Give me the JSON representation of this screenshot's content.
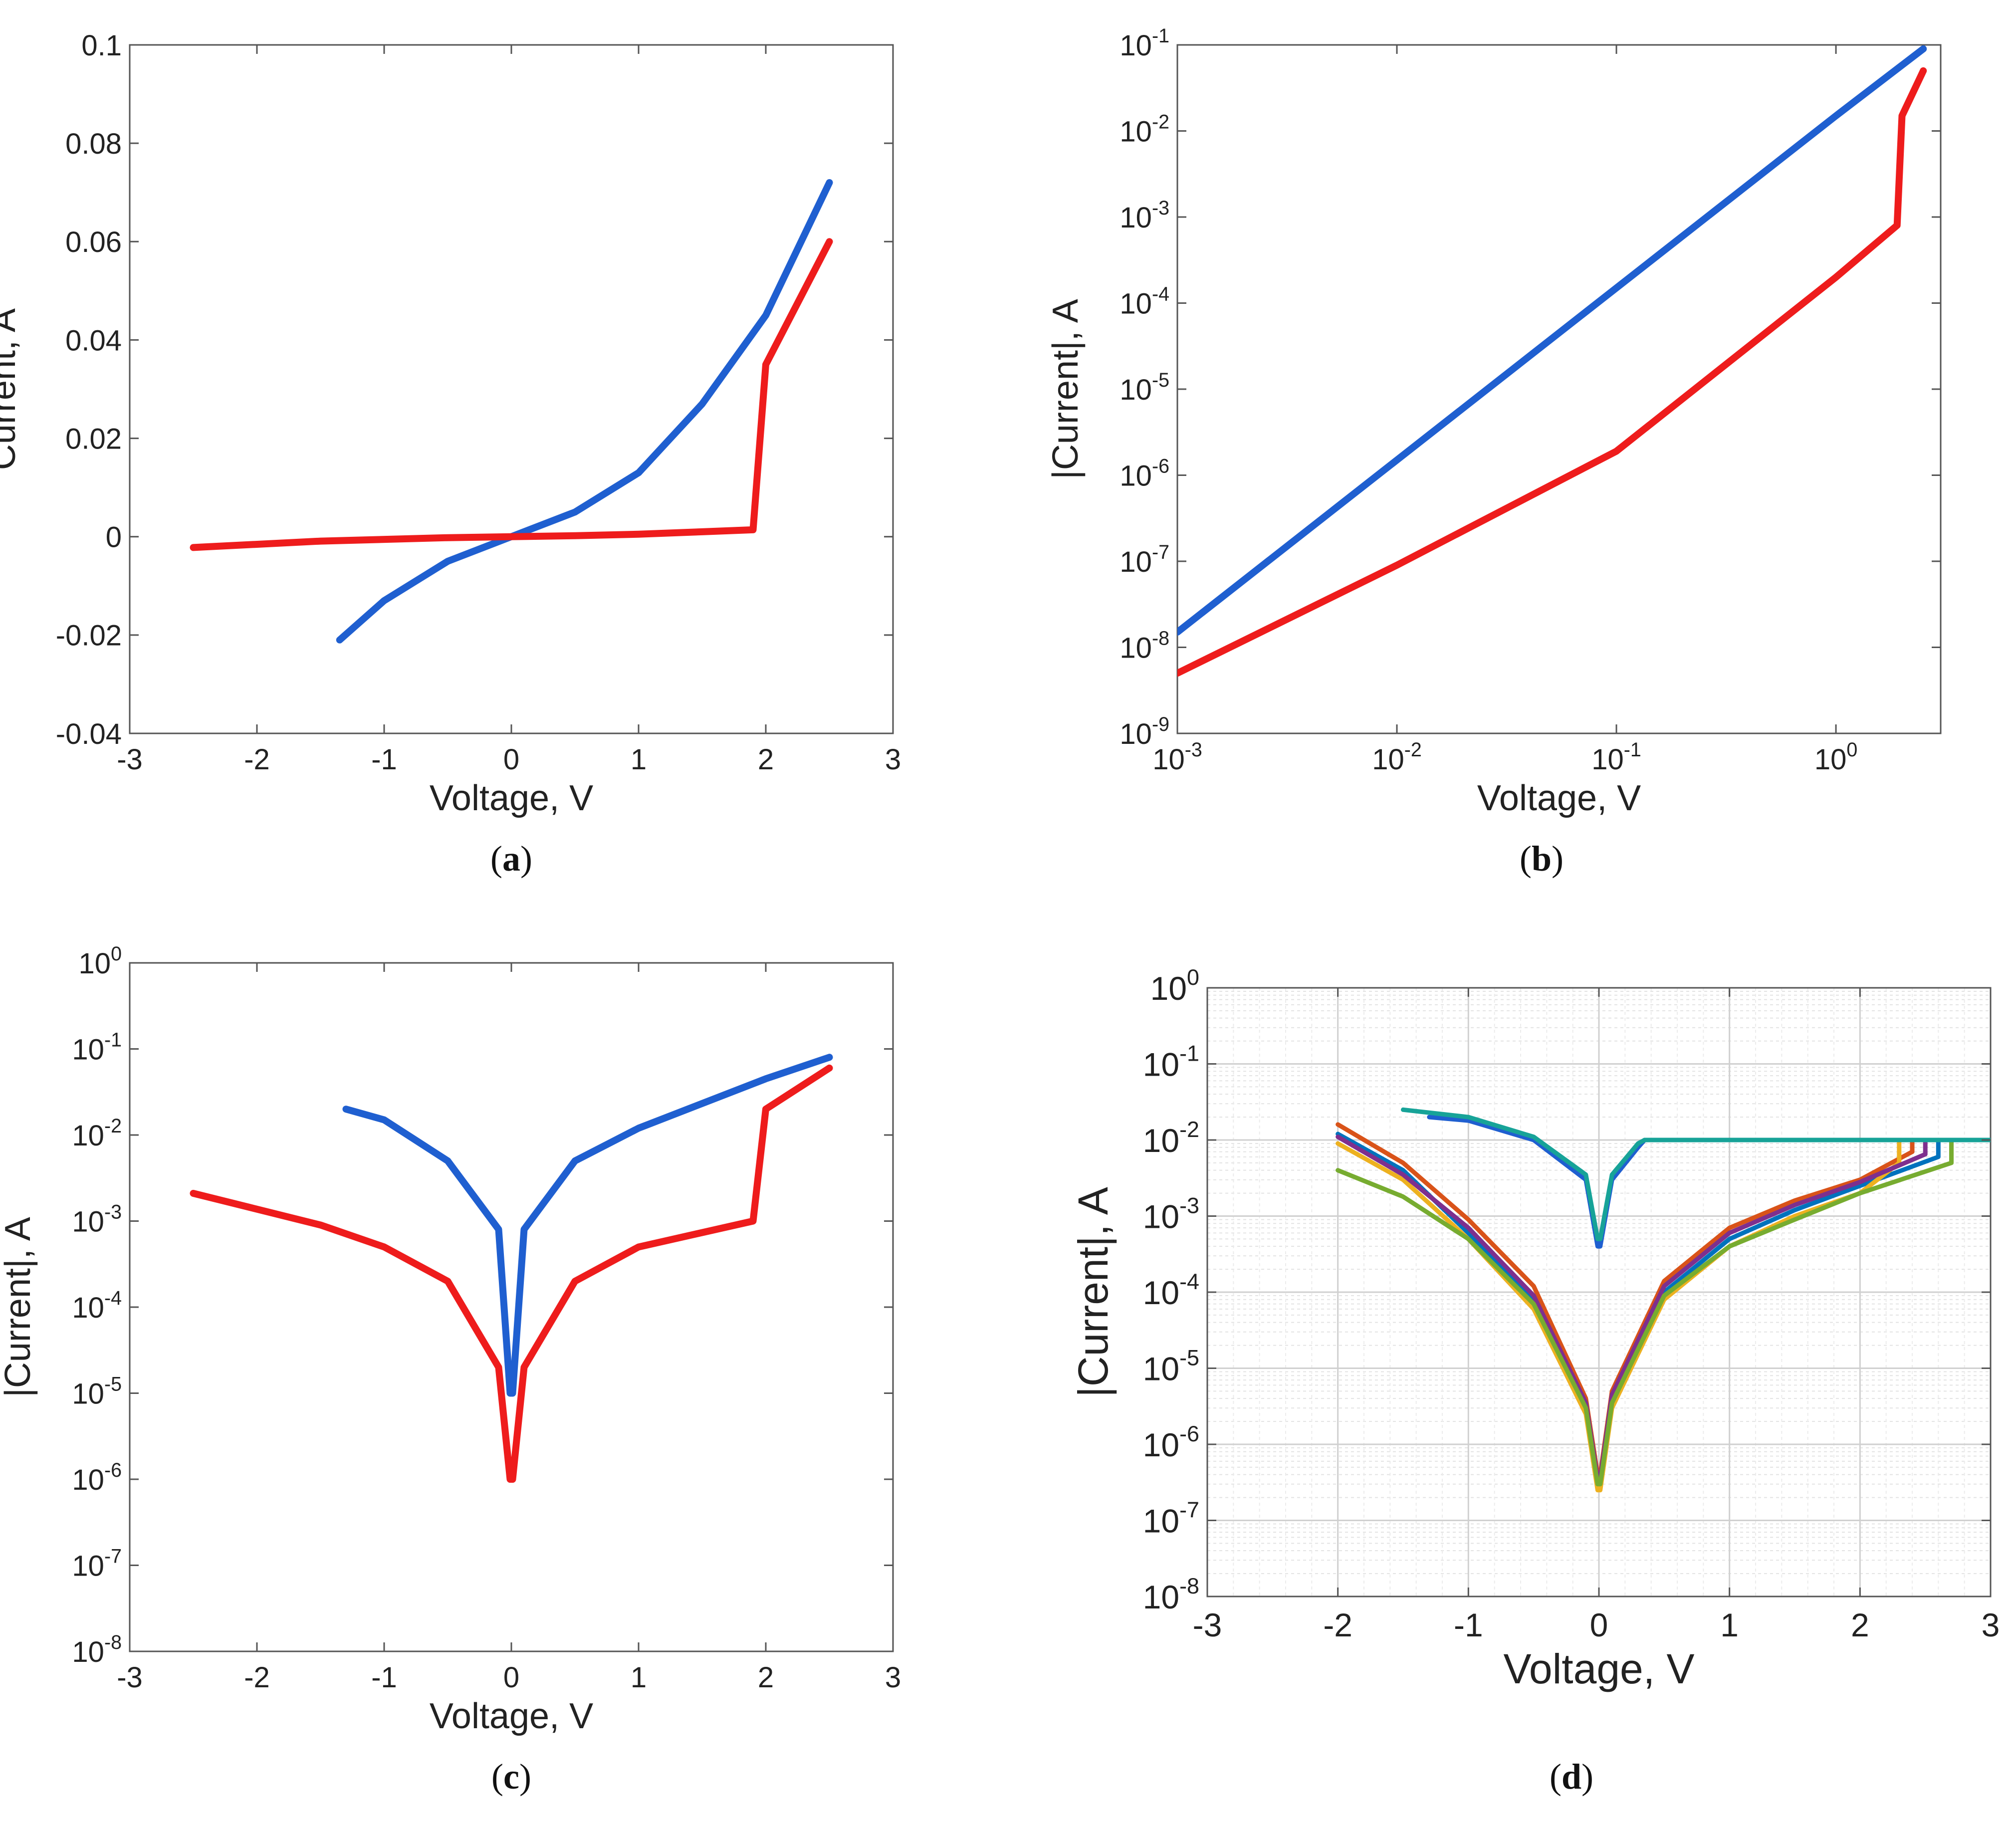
{
  "figure": {
    "panels": [
      {
        "label": "a",
        "xlabel": "Voltage, V",
        "ylabel": "Current, A",
        "x_ticks": [
          "-3",
          "-2",
          "-1",
          "0",
          "1",
          "2",
          "3"
        ],
        "y_ticks": [
          "-0.04",
          "-0.02",
          "0",
          "0.02",
          "0.04",
          "0.06",
          "0.08",
          "0.1"
        ]
      },
      {
        "label": "b",
        "xlabel": "Voltage, V",
        "ylabel": "|Current|, A",
        "x_ticks": [
          {
            "base": "10",
            "exp": "-3"
          },
          {
            "base": "10",
            "exp": "-2"
          },
          {
            "base": "10",
            "exp": "-1"
          },
          {
            "base": "10",
            "exp": "0"
          }
        ],
        "y_ticks": [
          {
            "base": "10",
            "exp": "-9"
          },
          {
            "base": "10",
            "exp": "-8"
          },
          {
            "base": "10",
            "exp": "-7"
          },
          {
            "base": "10",
            "exp": "-6"
          },
          {
            "base": "10",
            "exp": "-5"
          },
          {
            "base": "10",
            "exp": "-4"
          },
          {
            "base": "10",
            "exp": "-3"
          },
          {
            "base": "10",
            "exp": "-2"
          },
          {
            "base": "10",
            "exp": "-1"
          }
        ]
      },
      {
        "label": "c",
        "xlabel": "Voltage, V",
        "ylabel": "|Current|, A",
        "x_ticks": [
          "-3",
          "-2",
          "-1",
          "0",
          "1",
          "2",
          "3"
        ],
        "y_ticks": [
          {
            "base": "10",
            "exp": "-8"
          },
          {
            "base": "10",
            "exp": "-7"
          },
          {
            "base": "10",
            "exp": "-6"
          },
          {
            "base": "10",
            "exp": "-5"
          },
          {
            "base": "10",
            "exp": "-4"
          },
          {
            "base": "10",
            "exp": "-3"
          },
          {
            "base": "10",
            "exp": "-2"
          },
          {
            "base": "10",
            "exp": "-1"
          },
          {
            "base": "10",
            "exp": "0"
          }
        ]
      },
      {
        "label": "d",
        "xlabel": "Voltage, V",
        "ylabel": "|Current|, A",
        "x_ticks": [
          "-3",
          "-2",
          "-1",
          "0",
          "1",
          "2",
          "3"
        ],
        "y_ticks": [
          {
            "base": "10",
            "exp": "-8"
          },
          {
            "base": "10",
            "exp": "-7"
          },
          {
            "base": "10",
            "exp": "-6"
          },
          {
            "base": "10",
            "exp": "-5"
          },
          {
            "base": "10",
            "exp": "-4"
          },
          {
            "base": "10",
            "exp": "-3"
          },
          {
            "base": "10",
            "exp": "-2"
          },
          {
            "base": "10",
            "exp": "-1"
          },
          {
            "base": "10",
            "exp": "0"
          }
        ]
      }
    ]
  },
  "colors": {
    "set_state": "#1f5fd0",
    "reset_state": "#ee1c1c",
    "multicolor_palette": [
      "#0072BD",
      "#D95319",
      "#EDB120",
      "#7E2F8E",
      "#77AC30",
      "#4DBEEE",
      "#A2142F",
      "#e57bb0",
      "#17a398"
    ]
  },
  "chart_data": [
    {
      "panel": "a",
      "type": "line",
      "xlabel": "Voltage, V",
      "ylabel": "Current, A",
      "xlim": [
        -3,
        3
      ],
      "ylim": [
        -0.04,
        0.1
      ],
      "grid": false,
      "legend": "none",
      "series": [
        {
          "color": "#1f5fd0",
          "x": [
            -1.35,
            -1.0,
            -0.5,
            0,
            0.5,
            1.0,
            1.5,
            2.0,
            2.5
          ],
          "y": [
            -0.021,
            -0.013,
            -0.005,
            0,
            0.005,
            0.013,
            0.027,
            0.045,
            0.072
          ]
        },
        {
          "color": "#ee1c1c",
          "x": [
            -2.5,
            -1.5,
            -0.5,
            0,
            0.5,
            1.0,
            1.5,
            1.9,
            2.0,
            2.5
          ],
          "y": [
            -0.0022,
            -0.0009,
            -0.0002,
            0,
            0.0002,
            0.0005,
            0.001,
            0.0014,
            0.035,
            0.06
          ]
        }
      ]
    },
    {
      "panel": "b",
      "type": "line",
      "xlabel": "Voltage, V",
      "ylabel": "|Current|, A",
      "xscale": "log",
      "yscale": "log",
      "xlim": [
        0.001,
        3
      ],
      "ylim": [
        1e-09,
        0.1
      ],
      "grid": false,
      "legend": "none",
      "series": [
        {
          "color": "#1f5fd0",
          "x": [
            0.001,
            0.01,
            0.1,
            1.0,
            2.5
          ],
          "y": [
            1.5e-08,
            1.5e-06,
            0.00015,
            0.015,
            0.09
          ]
        },
        {
          "color": "#ee1c1c",
          "x": [
            0.001,
            0.01,
            0.1,
            1.0,
            1.9,
            2.0,
            2.5
          ],
          "y": [
            5e-09,
            9e-08,
            1.9e-06,
            0.0002,
            0.0008,
            0.015,
            0.05
          ]
        }
      ]
    },
    {
      "panel": "c",
      "type": "line",
      "xlabel": "Voltage, V",
      "ylabel": "|Current|, A",
      "yscale": "log",
      "xlim": [
        -3,
        3
      ],
      "ylim": [
        1e-08,
        1
      ],
      "grid": false,
      "legend": "none",
      "series": [
        {
          "color": "#1f5fd0",
          "x": [
            -1.3,
            -1.0,
            -0.5,
            -0.1,
            -0.01,
            0.01,
            0.1,
            0.5,
            1.0,
            2.0,
            2.5
          ],
          "y": [
            0.02,
            0.015,
            0.005,
            0.0008,
            1e-05,
            1e-05,
            0.0008,
            0.005,
            0.012,
            0.045,
            0.08
          ]
        },
        {
          "color": "#ee1c1c",
          "x": [
            -2.5,
            -1.5,
            -1.0,
            -0.5,
            -0.1,
            -0.01,
            0.01,
            0.1,
            0.5,
            1.0,
            1.9,
            2.0,
            2.5
          ],
          "y": [
            0.0021,
            0.0009,
            0.0005,
            0.0002,
            2e-05,
            1e-06,
            1e-06,
            2e-05,
            0.0002,
            0.0005,
            0.001,
            0.02,
            0.06
          ]
        }
      ]
    },
    {
      "panel": "d",
      "type": "line",
      "xlabel": "Voltage, V",
      "ylabel": "|Current|, A",
      "yscale": "log",
      "xlim": [
        -3,
        3
      ],
      "ylim": [
        1e-08,
        1
      ],
      "grid": true,
      "legend": "none",
      "series": [
        {
          "color": "#0072BD",
          "x": [
            -2.0,
            -1.5,
            -1.0,
            -0.5,
            -0.1,
            -0.01,
            0.01,
            0.1,
            0.5,
            1.0,
            1.5,
            2.0,
            2.6,
            2.6,
            3.0
          ],
          "y": [
            0.012,
            0.004,
            0.0006,
            8e-05,
            3e-06,
            3e-07,
            3e-07,
            4e-06,
            0.0001,
            0.0005,
            0.0012,
            0.0025,
            0.006,
            0.01,
            0.01
          ]
        },
        {
          "color": "#D95319",
          "x": [
            -2.0,
            -1.5,
            -1.0,
            -0.5,
            -0.1,
            -0.01,
            0.01,
            0.1,
            0.5,
            1.0,
            1.5,
            2.0,
            2.4,
            2.4,
            3.0
          ],
          "y": [
            0.016,
            0.005,
            0.0009,
            0.00012,
            4e-06,
            4e-07,
            4e-07,
            5e-06,
            0.00014,
            0.0007,
            0.0016,
            0.003,
            0.007,
            0.01,
            0.01
          ]
        },
        {
          "color": "#EDB120",
          "x": [
            -2.0,
            -1.5,
            -1.0,
            -0.5,
            -0.1,
            -0.01,
            0.01,
            0.1,
            0.5,
            1.0,
            1.5,
            2.0,
            2.3,
            2.3,
            3.0
          ],
          "y": [
            0.009,
            0.003,
            0.0005,
            6e-05,
            2.5e-06,
            2.5e-07,
            2.5e-07,
            3e-06,
            8e-05,
            0.0004,
            0.001,
            0.002,
            0.005,
            0.01,
            0.01
          ]
        },
        {
          "color": "#7E2F8E",
          "x": [
            -2.0,
            -1.5,
            -1.0,
            -0.5,
            -0.1,
            -0.01,
            0.01,
            0.1,
            0.5,
            1.0,
            1.5,
            2.0,
            2.5,
            2.5,
            3.0
          ],
          "y": [
            0.011,
            0.0035,
            0.0007,
            9e-05,
            3.5e-06,
            3.5e-07,
            3.5e-07,
            4.5e-06,
            0.00012,
            0.0006,
            0.0014,
            0.0028,
            0.0065,
            0.01,
            0.01
          ]
        },
        {
          "color": "#77AC30",
          "x": [
            -2.0,
            -1.5,
            -1.0,
            -0.5,
            -0.1,
            -0.01,
            0.01,
            0.1,
            0.5,
            1.0,
            1.5,
            2.0,
            2.7,
            2.7,
            3.0
          ],
          "y": [
            0.004,
            0.0018,
            0.0005,
            7e-05,
            3e-06,
            3e-07,
            3e-07,
            3.5e-06,
            9e-05,
            0.0004,
            0.0009,
            0.002,
            0.005,
            0.01,
            0.01
          ]
        },
        {
          "color": "#1f5fd0",
          "x": [
            -1.3,
            -1.0,
            -0.5,
            -0.1,
            -0.01,
            0.01,
            0.1,
            0.3,
            0.35,
            3.0
          ],
          "y": [
            0.02,
            0.018,
            0.01,
            0.003,
            0.0004,
            0.0004,
            0.003,
            0.008,
            0.01,
            0.01
          ]
        },
        {
          "color": "#17a398",
          "x": [
            -1.5,
            -1.0,
            -0.5,
            -0.1,
            -0.01,
            0.01,
            0.1,
            0.3,
            0.35,
            3.0
          ],
          "y": [
            0.025,
            0.02,
            0.011,
            0.0035,
            0.0005,
            0.0005,
            0.0035,
            0.009,
            0.01,
            0.01
          ]
        }
      ]
    }
  ]
}
